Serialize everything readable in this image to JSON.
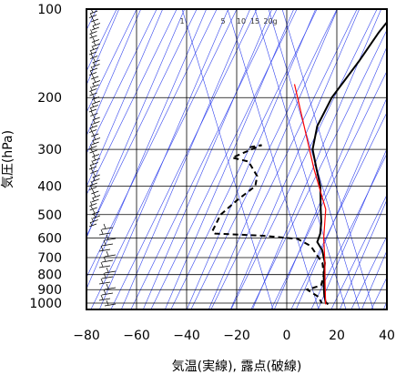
{
  "chart_data": {
    "type": "line",
    "title": "",
    "xlabel": "気温(実線), 露点(破線)",
    "ylabel": "気圧(hPa)",
    "xlim": [
      -80,
      40
    ],
    "ylim": [
      1050,
      100
    ],
    "y_scale": "log",
    "x_ticks": [
      -80,
      -60,
      -40,
      -20,
      0,
      20,
      40
    ],
    "y_ticks": [
      1000,
      900,
      800,
      700,
      600,
      500,
      400,
      300,
      200,
      100
    ],
    "mixing_ratio_labels": [
      "1",
      "5",
      "10",
      "15",
      "20g"
    ],
    "series": [
      {
        "style": "solid",
        "color": "#000000",
        "points": [
          [
            -66,
            100
          ],
          [
            -67,
            105
          ],
          [
            -66,
            120
          ],
          [
            -63,
            150
          ],
          [
            -60,
            200
          ],
          [
            -55,
            250
          ],
          [
            -48,
            300
          ],
          [
            -39,
            350
          ],
          [
            -31,
            400
          ],
          [
            -22,
            480
          ],
          [
            -17,
            530
          ],
          [
            -13,
            580
          ],
          [
            -11,
            620
          ],
          [
            -6,
            660
          ],
          [
            0,
            730
          ],
          [
            4,
            800
          ],
          [
            8,
            870
          ],
          [
            12,
            940
          ],
          [
            15,
            990
          ],
          [
            17,
            1010
          ]
        ]
      },
      {
        "style": "dashed",
        "color": "#000000",
        "points": [
          [
            -74,
            295
          ],
          [
            -70,
            290
          ],
          [
            -77,
            320
          ],
          [
            -69,
            330
          ],
          [
            -60,
            370
          ],
          [
            -57,
            400
          ],
          [
            -59,
            450
          ],
          [
            -60,
            500
          ],
          [
            -57,
            570
          ],
          [
            -55,
            580
          ],
          [
            -35,
            590
          ],
          [
            -20,
            605
          ],
          [
            -12,
            640
          ],
          [
            -7,
            680
          ],
          [
            -1,
            730
          ],
          [
            4,
            800
          ],
          [
            7,
            870
          ],
          [
            3,
            900
          ],
          [
            10,
            950
          ],
          [
            14,
            1000
          ]
        ]
      },
      {
        "style": "solid",
        "color": "#ff0000",
        "points": [
          [
            -80,
            180
          ],
          [
            -40,
            350
          ],
          [
            -20,
            480
          ],
          [
            -10,
            600
          ],
          [
            0,
            730
          ],
          [
            8,
            860
          ],
          [
            16,
            1010
          ]
        ]
      }
    ],
    "wind_barbs": "left column, 100-1010 hPa"
  }
}
